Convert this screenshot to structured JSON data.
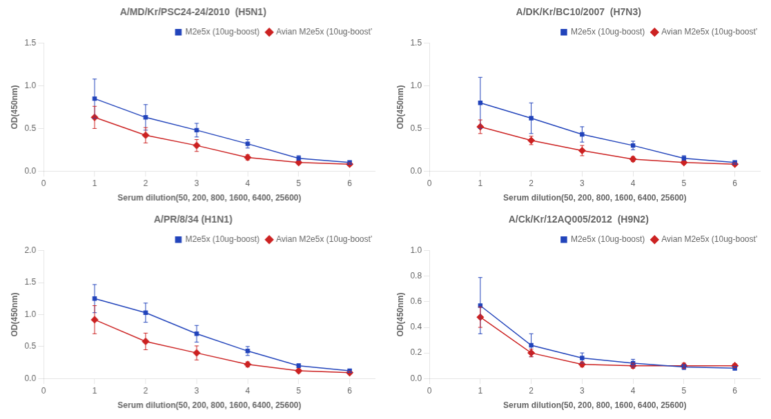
{
  "chart_data": [
    {
      "type": "line",
      "title": "A/MD/Kr/PSC24-24/2010  (H5N1)",
      "xlabel": "Serum dilution(50, 200, 800, 1600, 6400, 25600)",
      "ylabel": "OD(450nm)",
      "x": [
        1,
        2,
        3,
        4,
        5,
        6
      ],
      "xlim": [
        0,
        6.5
      ],
      "xticks": [
        0,
        1,
        2,
        3,
        4,
        5,
        6
      ],
      "ylim": [
        0.0,
        1.5
      ],
      "yticks": [
        {
          "value": 0.0,
          "label": "0.0"
        },
        {
          "value": 0.5,
          "label": "0.5"
        },
        {
          "value": 1.0,
          "label": "1.0"
        },
        {
          "value": 1.5,
          "label": "1.5"
        }
      ],
      "grid": false,
      "legend": "upper right",
      "series": [
        {
          "name": "M2e5x (10ug-boost)",
          "color": "#2244BB",
          "marker": "square",
          "values": [
            0.85,
            0.63,
            0.48,
            0.32,
            0.15,
            0.1
          ],
          "errors": [
            0.23,
            0.15,
            0.08,
            0.05,
            0.03,
            0.02
          ]
        },
        {
          "name": "Avian M2e5x (10ug-boostʼ",
          "color": "#CC2222",
          "marker": "diamond",
          "values": [
            0.63,
            0.42,
            0.3,
            0.16,
            0.1,
            0.08
          ],
          "errors": [
            0.13,
            0.09,
            0.07,
            0.03,
            0.02,
            0.015
          ]
        }
      ]
    },
    {
      "type": "line",
      "title": "A/DK/Kr/BC10/2007  (H7N3)",
      "xlabel": "Serum dilution(50, 200, 800, 1600, 6400, 25600)",
      "ylabel": "OD(450nm)",
      "x": [
        1,
        2,
        3,
        4,
        5,
        6
      ],
      "xlim": [
        0,
        6.5
      ],
      "xticks": [
        0,
        1,
        2,
        3,
        4,
        5,
        6
      ],
      "ylim": [
        0.0,
        1.5
      ],
      "yticks": [
        {
          "value": 0.0,
          "label": "0.0"
        },
        {
          "value": 0.5,
          "label": "0.5"
        },
        {
          "value": 1.0,
          "label": "1.0"
        },
        {
          "value": 1.5,
          "label": "1.5"
        }
      ],
      "grid": false,
      "legend": "upper right",
      "series": [
        {
          "name": "M2e5x (10ug-boost)",
          "color": "#2244BB",
          "marker": "square",
          "values": [
            0.8,
            0.62,
            0.43,
            0.3,
            0.15,
            0.1
          ],
          "errors": [
            0.3,
            0.18,
            0.09,
            0.05,
            0.03,
            0.02
          ]
        },
        {
          "name": "Avian M2e5x (10ug-boostʼ",
          "color": "#CC2222",
          "marker": "diamond",
          "values": [
            0.52,
            0.36,
            0.24,
            0.14,
            0.1,
            0.08
          ],
          "errors": [
            0.08,
            0.05,
            0.06,
            0.03,
            0.02,
            0.015
          ]
        }
      ]
    },
    {
      "type": "line",
      "title": "A/PR/8/34 (H1N1)",
      "xlabel": "Serum dilution(50, 200, 800, 1600, 6400, 25600)",
      "ylabel": "OD(450nm)",
      "x": [
        1,
        2,
        3,
        4,
        5,
        6
      ],
      "xlim": [
        0,
        6.5
      ],
      "xticks": [
        0,
        1,
        2,
        3,
        4,
        5,
        6
      ],
      "ylim": [
        0.0,
        2.0
      ],
      "yticks": [
        {
          "value": 0.0,
          "label": "0.0"
        },
        {
          "value": 0.5,
          "label": "0.5"
        },
        {
          "value": 1.0,
          "label": "1.0"
        },
        {
          "value": 1.5,
          "label": "1.5"
        },
        {
          "value": 2.0,
          "label": "2.0"
        }
      ],
      "grid": false,
      "legend": "upper right",
      "series": [
        {
          "name": "M2e5x (10ug-boost)",
          "color": "#2244BB",
          "marker": "square",
          "values": [
            1.25,
            1.03,
            0.7,
            0.43,
            0.2,
            0.12
          ],
          "errors": [
            0.22,
            0.15,
            0.13,
            0.07,
            0.03,
            0.02
          ]
        },
        {
          "name": "Avian M2e5x (10ug-boostʼ",
          "color": "#CC2222",
          "marker": "diamond",
          "values": [
            0.92,
            0.58,
            0.4,
            0.22,
            0.12,
            0.09
          ],
          "errors": [
            0.22,
            0.13,
            0.11,
            0.04,
            0.03,
            0.02
          ]
        }
      ]
    },
    {
      "type": "line",
      "title": "A/Ck/Kr/12AQ005/2012  (H9N2)",
      "xlabel": "Serum dilution(50, 200, 800, 1600, 6400, 25600)",
      "ylabel": "OD(450nm)",
      "x": [
        1,
        2,
        3,
        4,
        5,
        6
      ],
      "xlim": [
        0,
        6.5
      ],
      "xticks": [
        0,
        1,
        2,
        3,
        4,
        5,
        6
      ],
      "ylim": [
        0.0,
        1.0
      ],
      "yticks": [
        {
          "value": 0.0,
          "label": "0.0"
        },
        {
          "value": 0.2,
          "label": "0.2"
        },
        {
          "value": 0.4,
          "label": "0.4"
        },
        {
          "value": 0.6,
          "label": "0.6"
        },
        {
          "value": 0.8,
          "label": "0.8"
        },
        {
          "value": 1.0,
          "label": "1.0"
        }
      ],
      "grid": false,
      "legend": "upper right",
      "series": [
        {
          "name": "M2e5x (10ug-boost)",
          "color": "#2244BB",
          "marker": "square",
          "values": [
            0.57,
            0.26,
            0.16,
            0.12,
            0.09,
            0.08
          ],
          "errors": [
            0.22,
            0.09,
            0.04,
            0.03,
            0.02,
            0.015
          ]
        },
        {
          "name": "Avian M2e5x (10ug-boostʼ",
          "color": "#CC2222",
          "marker": "diamond",
          "values": [
            0.48,
            0.2,
            0.11,
            0.1,
            0.1,
            0.1
          ],
          "errors": [
            0.08,
            0.03,
            0.02,
            0.02,
            0.02,
            0.015
          ]
        }
      ]
    }
  ]
}
